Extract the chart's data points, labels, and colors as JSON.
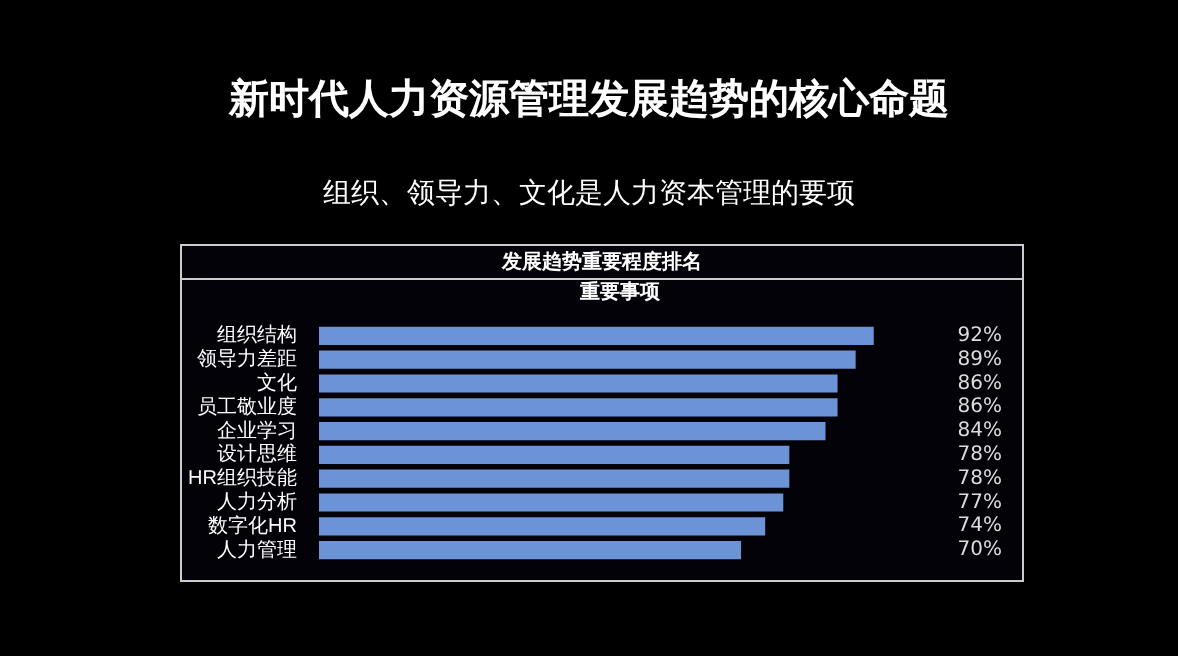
{
  "chart_data": {
    "type": "bar",
    "orientation": "horizontal",
    "title": "新时代人力资源管理发展趋势的核心命题",
    "subtitle": "组织、领导力、文化是人力资本管理的要项",
    "annotations": [
      "发展趋势重要程度排名"
    ],
    "xlabel": "重要事项",
    "categories": [
      "组织结构",
      "领导力差距",
      "文化",
      "员工敬业度",
      "企业学习",
      "设计思维",
      "HR组织技能",
      "人力分析",
      "数字化HR",
      "人力管理"
    ],
    "values": [
      92,
      89,
      86,
      86,
      84,
      78,
      78,
      77,
      74,
      70
    ],
    "value_labels": [
      "92%",
      "89%",
      "86%",
      "86%",
      "84%",
      "78%",
      "78%",
      "77%",
      "74%",
      "70%"
    ],
    "color": "#6b93d6",
    "tick_labels": "y",
    "grid": false,
    "legend": false
  }
}
